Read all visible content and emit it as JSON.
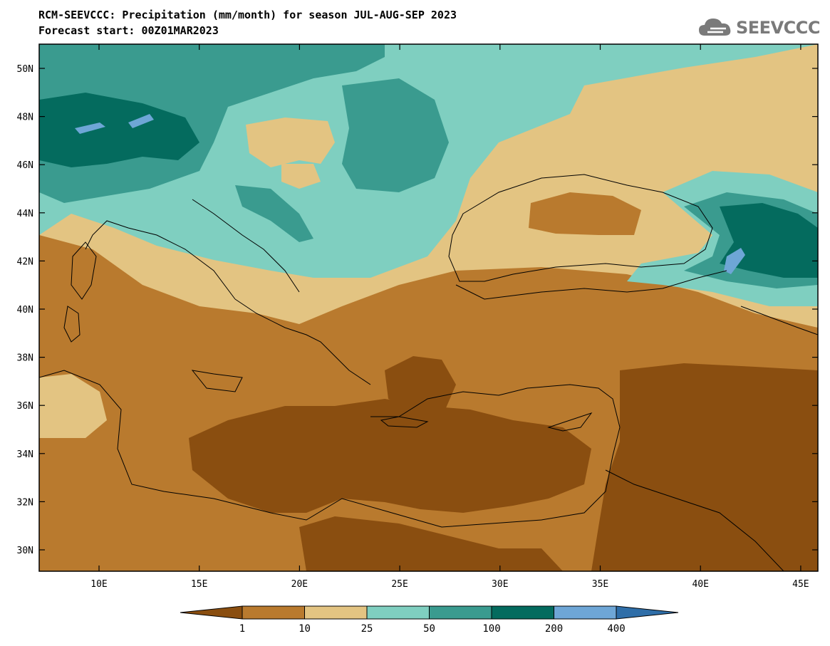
{
  "header": {
    "title_line1": "RCM-SEEVCCC: Precipitation (mm/month) for season JUL-AUG-SEP 2023",
    "title_line2": "Forecast start: 00Z01MAR2023",
    "logo_text": "SEEVCCC"
  },
  "map": {
    "variable": "Precipitation (mm/month)",
    "season": "JUL-AUG-SEP 2023",
    "lat_ticks": [
      "50N",
      "48N",
      "46N",
      "44N",
      "42N",
      "40N",
      "38N",
      "36N",
      "34N",
      "32N",
      "30N"
    ],
    "lon_ticks": [
      "10E",
      "15E",
      "20E",
      "25E",
      "30E",
      "35E",
      "40E",
      "45E"
    ]
  },
  "colorbar": {
    "labels": [
      "1",
      "10",
      "25",
      "50",
      "100",
      "200",
      "400"
    ],
    "colors": [
      "#8a4e10",
      "#b97a2e",
      "#e3c482",
      "#7fcfc0",
      "#3a9b8f",
      "#046b5e",
      "#6ea6d6",
      "#2f6ea8"
    ]
  }
}
